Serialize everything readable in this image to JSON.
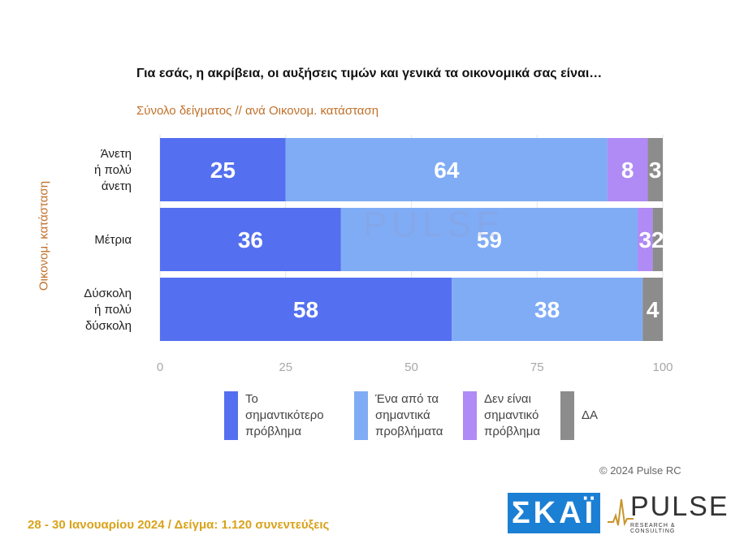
{
  "chart_data": {
    "type": "bar",
    "orientation": "horizontal",
    "stacked": true,
    "title": "Για εσάς, η ακρίβεια, οι αυξήσεις τιμών και γενικά τα οικονομικά σας είναι…",
    "subtitle": "Σύνολο δείγματος // ανά Οικονομ. κατάσταση",
    "ylabel": "Οικονομ. κατάσταση",
    "xlabel": "",
    "categories": [
      "Άνετη ή πολύ άνετη",
      "Μέτρια",
      "Δύσκολη ή πολύ δύσκολη"
    ],
    "category_lines": [
      [
        "Άνετη",
        "ή πολύ",
        "άνετη"
      ],
      [
        "Μέτρια"
      ],
      [
        "Δύσκολη",
        "ή πολύ",
        "δύσκολη"
      ]
    ],
    "series": [
      {
        "name": "Το σημαντικότερο πρόβλημα",
        "color": "#5470f0",
        "values": [
          25,
          36,
          58
        ],
        "labels": [
          "25",
          "36",
          "58"
        ]
      },
      {
        "name": "Ένα από τα σημαντικά προβλήματα",
        "color": "#80acf5",
        "values": [
          64,
          59,
          38
        ],
        "labels": [
          "64",
          "59",
          "38"
        ]
      },
      {
        "name": "Δεν είναι σημαντικό πρόβλημα",
        "color": "#b08af5",
        "values": [
          8,
          3,
          0
        ],
        "labels": [
          "8",
          "3",
          ""
        ]
      },
      {
        "name": "ΔΑ",
        "color": "#8c8c8c",
        "values": [
          3,
          2,
          4
        ],
        "labels": [
          "3",
          "2",
          "4"
        ]
      }
    ],
    "xlim": [
      0,
      100
    ],
    "xticks": [
      "0",
      "25",
      "50",
      "75",
      "100"
    ],
    "grid": true,
    "legend_position": "bottom"
  },
  "legend": [
    {
      "label": "Το\nσημαντικότερο\nπρόβλημα",
      "color": "#5470f0"
    },
    {
      "label": "Ένα από τα\nσημαντικά\nπροβλήματα",
      "color": "#80acf5"
    },
    {
      "label": "Δεν είναι\nσημαντικό\nπρόβλημα",
      "color": "#b08af5"
    },
    {
      "label": "ΔΑ",
      "color": "#8c8c8c"
    }
  ],
  "copyright": "© 2024 Pulse RC",
  "footer": "28 - 30  Ιανουαρίου  2024  /  Δείγμα:  1.120 συνεντεύξεις",
  "logos": {
    "skai": "ΣΚΑΪ",
    "pulse": "PULSE",
    "pulse_sub": "RESEARCH & CONSULTING"
  },
  "watermark": "PULSE"
}
